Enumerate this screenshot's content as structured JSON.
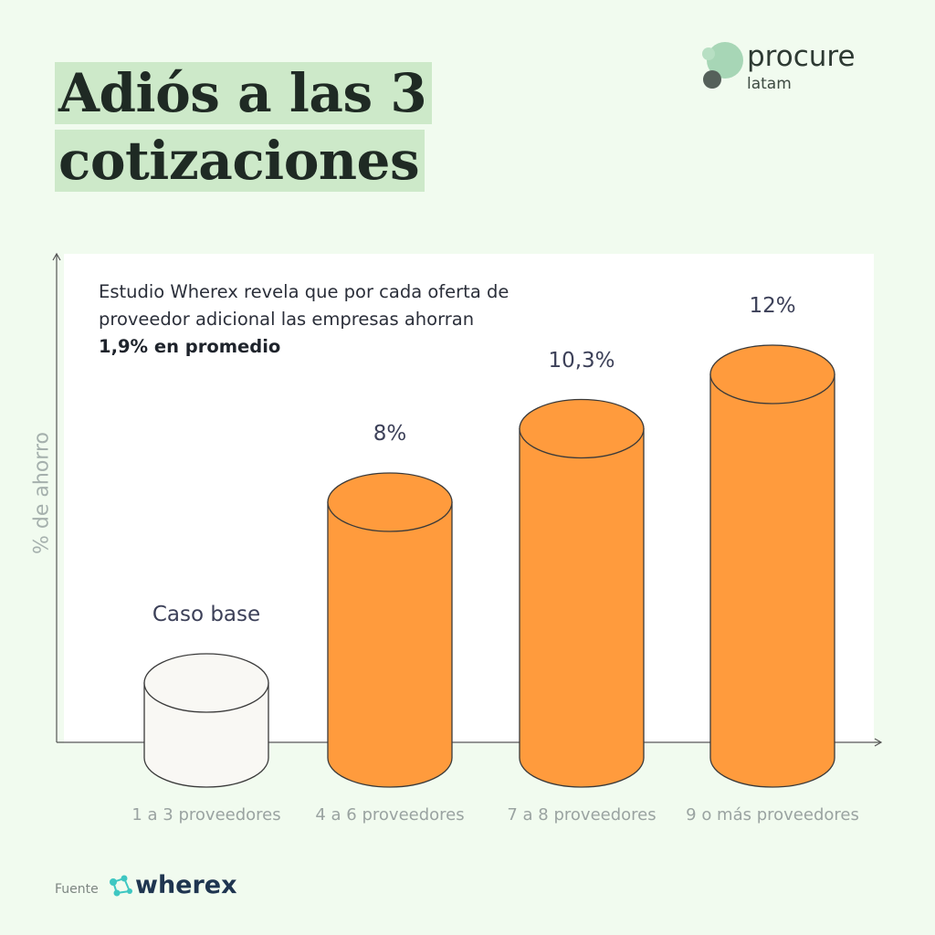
{
  "title": {
    "line1": "Adiós a las 3",
    "line2": "cotizaciones"
  },
  "logo": {
    "brand": "procure",
    "sub": "latam"
  },
  "note": {
    "text_before": "Estudio Wherex revela que por cada oferta de proveedor adicional las empresas ahorran ",
    "text_bold": "1,9% en promedio"
  },
  "footer": {
    "label": "Fuente",
    "brand": "wherex"
  },
  "colors": {
    "background": "#f1fbef",
    "title_highlight": "#cde9c9",
    "bar_orange": "#ff9b3d",
    "bar_base": "#f9f8f4",
    "stroke": "#3a3a3a"
  },
  "chart_data": {
    "type": "bar",
    "ylabel": "% de ahorro",
    "xlabel": "",
    "ylim": [
      0,
      13
    ],
    "categories": [
      "1 a 3 proveedores",
      "4 a 6 proveedores",
      "7 a 8 proveedores",
      "9 o más proveedores"
    ],
    "values": [
      0,
      8,
      10.3,
      12
    ],
    "value_labels": [
      "Caso base",
      "8%",
      "10,3%",
      "12%"
    ],
    "bar_colors": [
      "#f9f8f4",
      "#ff9b3d",
      "#ff9b3d",
      "#ff9b3d"
    ],
    "grid": false
  }
}
